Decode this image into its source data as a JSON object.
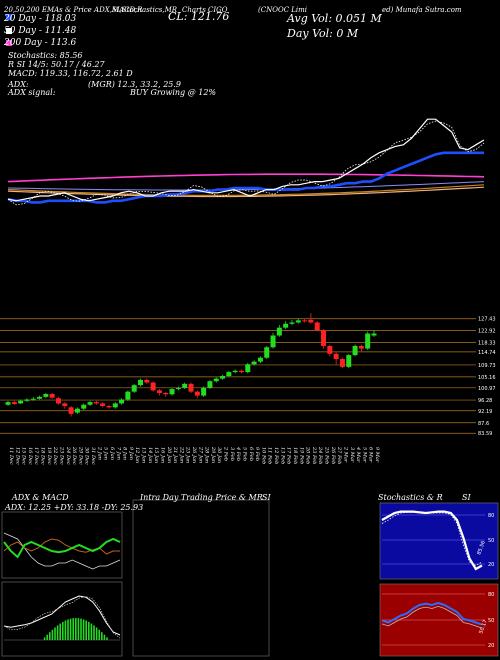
{
  "header": {
    "line1_left": "20,50,200 EMAs & Price ADX,MACD,R",
    "line1_mid": "SI,Stochastics,MR",
    "line1_right": "Charts CIGO",
    "line1_far": "(CNOOC Limi",
    "line1_end": "ed) Munafa Sutra.com",
    "cl": "CL: 121.76",
    "avg_vol": "Avg Vol: 0.051 M",
    "day_vol": "Day Vol: 0   M",
    "ema20": "20   Day - 118.03",
    "ema50": "50   Day - 111.48",
    "ema200": "200   Day - 113.6",
    "stoch": "Stochastics: 85.56",
    "rsi": "R             SI 14/5: 50.17 / 46.27",
    "macd": "MACD: 119.33, 116.72, 2.61 D",
    "adx": "ADX:",
    "adx_vals": "(MGR) 12.3, 33.2, 25.9",
    "adx_signal": "ADX signal:",
    "buy": "BUY Growing @ 12%"
  },
  "price_levels": [
    "127.43",
    "122.92",
    "118.33",
    "114.74",
    "109.73",
    "105.16",
    "100.97",
    "96.28",
    "92.19",
    "87.6",
    "83.59"
  ],
  "x_dates": [
    "11 Dec",
    "12 Dec",
    "15 Dec",
    "16 Dec",
    "17 Dec",
    "18 Dec",
    "19 Dec",
    "22 Dec",
    "23 Dec",
    "24 Dec",
    "26 Dec",
    "29 Dec",
    "30 Dec",
    "31 Dec",
    "2 Jan",
    "5 Jan",
    "6 Jan",
    "7 Jan",
    "8 Jan",
    "9 Jan",
    "12 Jan",
    "13 Jan",
    "14 Jan",
    "15 Jan",
    "16 Jan",
    "20 Jan",
    "21 Jan",
    "22 Jan",
    "23 Jan",
    "26 Jan",
    "27 Jan",
    "28 Jan",
    "29 Jan",
    "30 Jan",
    "2 Feb",
    "3 Feb",
    "4 Feb",
    "5 Feb",
    "6 Feb",
    "9 Feb",
    "10 Feb",
    "11 Feb",
    "12 Feb",
    "13 Feb",
    "17 Feb",
    "18 Feb",
    "19 Feb",
    "20 Feb",
    "23 Feb",
    "24 Feb",
    "25 Feb",
    "26 Feb",
    "27 Feb",
    "2 Mar",
    "3 Mar",
    "4 Mar",
    "5 Mar",
    "6 Mar",
    "9 Mar"
  ],
  "panels": {
    "adx_title": "ADX  & MACD",
    "adx_readout": "ADX: 12.25  +DY: 33.18  -DY: 25.93",
    "intra_title": "Intra Day Trading Price  & MR",
    "intra_si": "SI",
    "stoch_title": "Stochastics & R",
    "stoch_si": "SI",
    "stoch_ticks": [
      "80",
      "50",
      "20"
    ],
    "stoch_value": "85.56",
    "rsi_ticks": [
      "80",
      "50",
      "20"
    ],
    "rsi_value": "50.17"
  },
  "chart_data": {
    "type": "candlestick",
    "ylim": [
      81,
      130
    ],
    "candles": [
      {
        "o": 94.5,
        "c": 95.5,
        "h": 96,
        "l": 94
      },
      {
        "o": 95.5,
        "c": 94.8,
        "h": 96,
        "l": 94.5
      },
      {
        "o": 95.0,
        "c": 96.0,
        "h": 96.5,
        "l": 94.8
      },
      {
        "o": 96.0,
        "c": 96.5,
        "h": 97,
        "l": 95.5
      },
      {
        "o": 96.5,
        "c": 96.8,
        "h": 97.5,
        "l": 96
      },
      {
        "o": 96.8,
        "c": 97.5,
        "h": 98,
        "l": 96.5
      },
      {
        "o": 97.5,
        "c": 98.6,
        "h": 99,
        "l": 97
      },
      {
        "o": 98.6,
        "c": 97.2,
        "h": 99,
        "l": 96.8
      },
      {
        "o": 97.0,
        "c": 95.0,
        "h": 97.5,
        "l": 94.5
      },
      {
        "o": 95.0,
        "c": 94.0,
        "h": 95.5,
        "l": 93
      },
      {
        "o": 93.5,
        "c": 91.0,
        "h": 94,
        "l": 90
      },
      {
        "o": 91.5,
        "c": 93.0,
        "h": 93.5,
        "l": 91
      },
      {
        "o": 93.0,
        "c": 94.5,
        "h": 95,
        "l": 92.5
      },
      {
        "o": 94.5,
        "c": 95.5,
        "h": 96,
        "l": 94
      },
      {
        "o": 95.5,
        "c": 95.0,
        "h": 96,
        "l": 94.5
      },
      {
        "o": 95.0,
        "c": 94.0,
        "h": 95.5,
        "l": 93.5
      },
      {
        "o": 94.0,
        "c": 93.5,
        "h": 94.5,
        "l": 93
      },
      {
        "o": 93.5,
        "c": 95.0,
        "h": 95.5,
        "l": 93
      },
      {
        "o": 95.0,
        "c": 96.5,
        "h": 97,
        "l": 94.5
      },
      {
        "o": 96.5,
        "c": 99.5,
        "h": 100,
        "l": 96
      },
      {
        "o": 99.5,
        "c": 102.0,
        "h": 102.5,
        "l": 99
      },
      {
        "o": 102.0,
        "c": 104.0,
        "h": 104.5,
        "l": 101.5
      },
      {
        "o": 104.0,
        "c": 103.0,
        "h": 104.5,
        "l": 102.5
      },
      {
        "o": 103.0,
        "c": 100.0,
        "h": 103.5,
        "l": 99.5
      },
      {
        "o": 100.0,
        "c": 99.0,
        "h": 100.5,
        "l": 98
      },
      {
        "o": 99.0,
        "c": 98.5,
        "h": 99.5,
        "l": 97.5
      },
      {
        "o": 98.5,
        "c": 100.5,
        "h": 101,
        "l": 98
      },
      {
        "o": 100.5,
        "c": 101.0,
        "h": 101.5,
        "l": 100
      },
      {
        "o": 101.0,
        "c": 102.5,
        "h": 103,
        "l": 100.5
      },
      {
        "o": 102.5,
        "c": 99.5,
        "h": 103,
        "l": 99
      },
      {
        "o": 99.5,
        "c": 98.0,
        "h": 100,
        "l": 97
      },
      {
        "o": 98.0,
        "c": 101.0,
        "h": 101.5,
        "l": 97.5
      },
      {
        "o": 101.0,
        "c": 103.5,
        "h": 104,
        "l": 100.5
      },
      {
        "o": 103.5,
        "c": 104.5,
        "h": 105,
        "l": 103
      },
      {
        "o": 104.5,
        "c": 105.5,
        "h": 106,
        "l": 104
      },
      {
        "o": 105.5,
        "c": 107.0,
        "h": 107.5,
        "l": 105
      },
      {
        "o": 107.0,
        "c": 107.5,
        "h": 108,
        "l": 106.5
      },
      {
        "o": 107.5,
        "c": 107.0,
        "h": 108,
        "l": 106.5
      },
      {
        "o": 107.0,
        "c": 110.0,
        "h": 110.5,
        "l": 106.5
      },
      {
        "o": 110.0,
        "c": 111.0,
        "h": 111.5,
        "l": 109.5
      },
      {
        "o": 111.0,
        "c": 112.5,
        "h": 113,
        "l": 110.5
      },
      {
        "o": 112.5,
        "c": 116.5,
        "h": 117,
        "l": 112
      },
      {
        "o": 116.5,
        "c": 121.0,
        "h": 122,
        "l": 116
      },
      {
        "o": 121.0,
        "c": 124.0,
        "h": 125,
        "l": 120.5
      },
      {
        "o": 124.0,
        "c": 125.5,
        "h": 126.5,
        "l": 123.5
      },
      {
        "o": 125.5,
        "c": 126.0,
        "h": 127,
        "l": 125
      },
      {
        "o": 126.0,
        "c": 126.8,
        "h": 127.5,
        "l": 125.5
      },
      {
        "o": 126.8,
        "c": 126.5,
        "h": 127.5,
        "l": 126
      },
      {
        "o": 127.0,
        "c": 126.0,
        "h": 129.5,
        "l": 125.5
      },
      {
        "o": 126.0,
        "c": 123.0,
        "h": 126.5,
        "l": 122.5
      },
      {
        "o": 123.0,
        "c": 117.0,
        "h": 123.5,
        "l": 116
      },
      {
        "o": 117.0,
        "c": 114.0,
        "h": 117.5,
        "l": 113
      },
      {
        "o": 114.0,
        "c": 112.0,
        "h": 114.5,
        "l": 110
      },
      {
        "o": 112.0,
        "c": 109.0,
        "h": 112.5,
        "l": 108.5
      },
      {
        "o": 109.0,
        "c": 113.5,
        "h": 114,
        "l": 108.5
      },
      {
        "o": 113.5,
        "c": 117.0,
        "h": 117.5,
        "l": 113
      },
      {
        "o": 117.0,
        "c": 116.0,
        "h": 117.5,
        "l": 115
      },
      {
        "o": 116.0,
        "c": 121.76,
        "h": 122.5,
        "l": 115.5
      },
      {
        "o": 121.0,
        "c": 121.76,
        "h": 123,
        "l": 120.5
      }
    ],
    "ema_lines_unit_y": {
      "white": [
        0.62,
        0.63,
        0.62,
        0.61,
        0.6,
        0.6,
        0.59,
        0.58,
        0.6,
        0.62,
        0.63,
        0.62,
        0.61,
        0.6,
        0.58,
        0.57,
        0.58,
        0.6,
        0.6,
        0.58,
        0.57,
        0.57,
        0.57,
        0.56,
        0.57,
        0.58,
        0.58,
        0.57,
        0.56,
        0.58,
        0.6,
        0.58,
        0.56,
        0.56,
        0.54,
        0.53,
        0.53,
        0.52,
        0.51,
        0.51,
        0.5,
        0.49,
        0.46,
        0.43,
        0.4,
        0.36,
        0.33,
        0.31,
        0.29,
        0.28,
        0.24,
        0.18,
        0.12,
        0.12,
        0.16,
        0.2,
        0.3,
        0.31,
        0.28,
        0.25
      ],
      "blue": [
        0.62,
        0.63,
        0.63,
        0.64,
        0.64,
        0.63,
        0.63,
        0.63,
        0.63,
        0.63,
        0.63,
        0.64,
        0.64,
        0.63,
        0.63,
        0.62,
        0.61,
        0.6,
        0.6,
        0.6,
        0.59,
        0.59,
        0.58,
        0.57,
        0.57,
        0.57,
        0.56,
        0.56,
        0.55,
        0.55,
        0.55,
        0.55,
        0.56,
        0.56,
        0.56,
        0.56,
        0.56,
        0.55,
        0.55,
        0.54,
        0.54,
        0.53,
        0.52,
        0.52,
        0.51,
        0.51,
        0.49,
        0.46,
        0.44,
        0.42,
        0.4,
        0.38,
        0.36,
        0.34,
        0.33,
        0.33,
        0.33,
        0.33,
        0.33,
        0.33
      ]
    }
  }
}
